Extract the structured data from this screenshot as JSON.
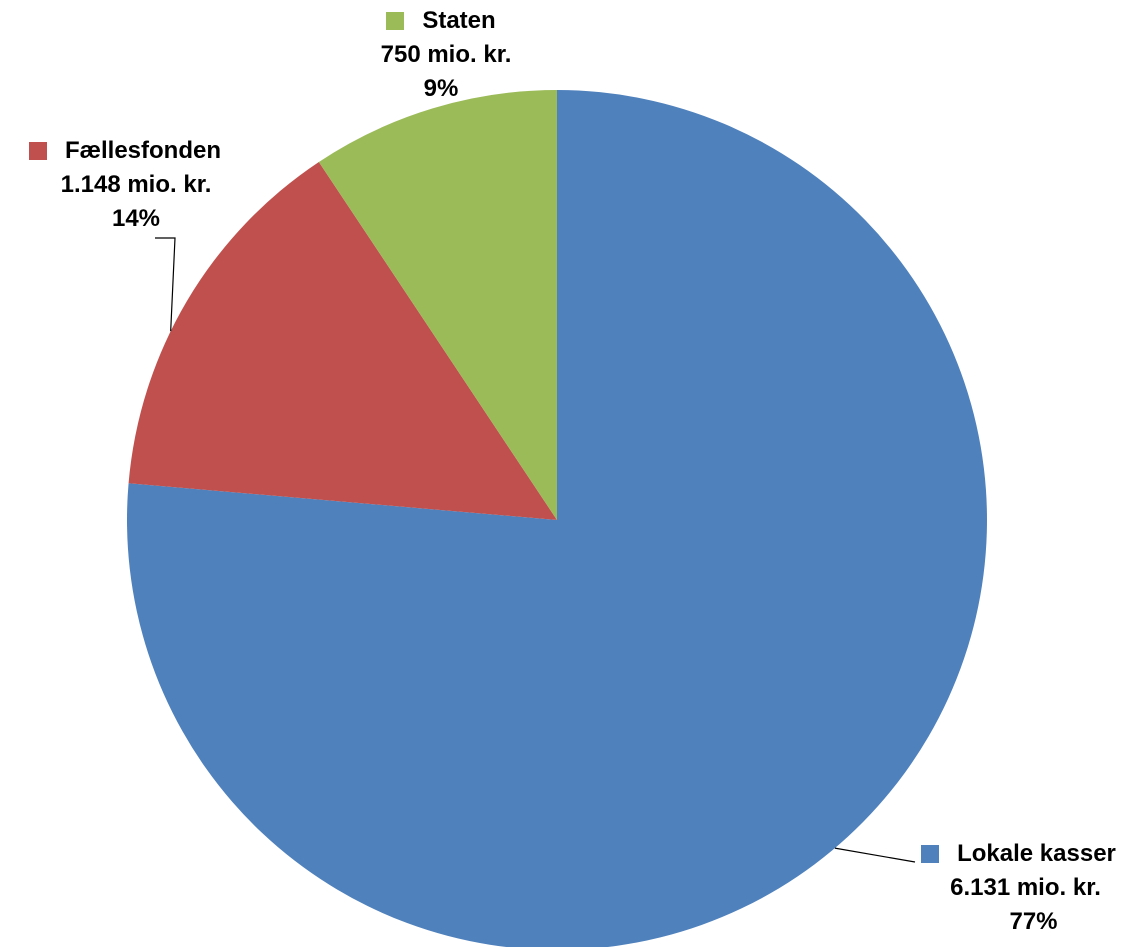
{
  "chart_data": {
    "type": "pie",
    "title": "",
    "slices": [
      {
        "name": "Lokale kasser",
        "value": 6131,
        "value_label": "6.131 mio. kr.",
        "percent_label": "77%",
        "color": "#4F81BD"
      },
      {
        "name": "Fællesfonden",
        "value": 1148,
        "value_label": "1.148 mio. kr.",
        "percent_label": "14%",
        "color": "#C0504D"
      },
      {
        "name": "Staten",
        "value": 750,
        "value_label": "750 mio. kr.",
        "percent_label": "9%",
        "color": "#9BBB59"
      }
    ],
    "start_angle": "12 o'clock",
    "direction": "clockwise",
    "legend": "none",
    "data_labels": "outside, with legend key and leader lines"
  }
}
